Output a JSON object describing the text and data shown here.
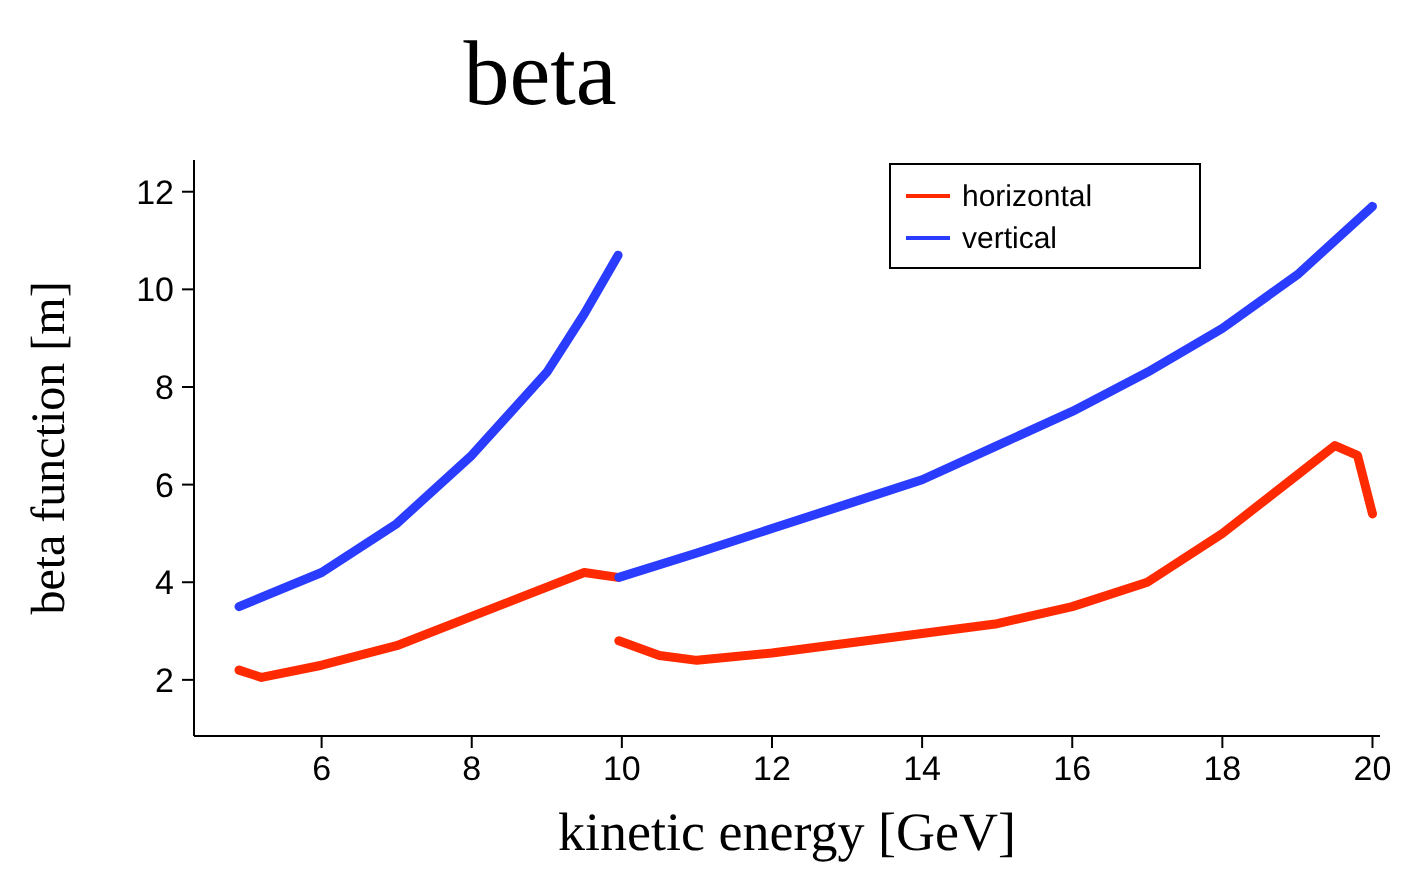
{
  "chart_data": {
    "type": "line",
    "title": "beta",
    "xlabel": "kinetic energy [GeV]",
    "ylabel": "beta function [m]",
    "xlim": [
      4.3,
      20.1
    ],
    "ylim": [
      0.85,
      12.65
    ],
    "xticks": [
      6,
      8,
      10,
      12,
      14,
      16,
      18,
      20
    ],
    "yticks": [
      2,
      4,
      6,
      8,
      10,
      12
    ],
    "grid": false,
    "legend": "top right",
    "series": [
      {
        "name": "horizontal",
        "color": "#ff2a00",
        "x": [
          4.9,
          5.2,
          6,
          7,
          8,
          9,
          9.5,
          9.95,
          9.955,
          9.96,
          10.5,
          11,
          12,
          13,
          14,
          15,
          16,
          17,
          18,
          19,
          19.5,
          19.8,
          20
        ],
        "values": [
          2.2,
          2.05,
          2.3,
          2.7,
          3.3,
          3.9,
          4.2,
          4.1,
          null,
          2.8,
          2.5,
          2.4,
          2.55,
          2.75,
          2.95,
          3.15,
          3.5,
          4.0,
          5.0,
          6.2,
          6.8,
          6.6,
          5.4
        ]
      },
      {
        "name": "vertical",
        "color": "#2a3cff",
        "x": [
          4.9,
          6,
          7,
          8,
          9,
          9.5,
          9.95,
          9.955,
          9.96,
          11,
          12,
          13,
          14,
          15,
          16,
          17,
          18,
          19,
          20
        ],
        "values": [
          3.5,
          4.2,
          5.2,
          6.6,
          8.3,
          9.5,
          10.7,
          null,
          4.1,
          4.6,
          5.1,
          5.6,
          6.1,
          6.8,
          7.5,
          8.3,
          9.2,
          10.3,
          11.7
        ]
      }
    ]
  }
}
